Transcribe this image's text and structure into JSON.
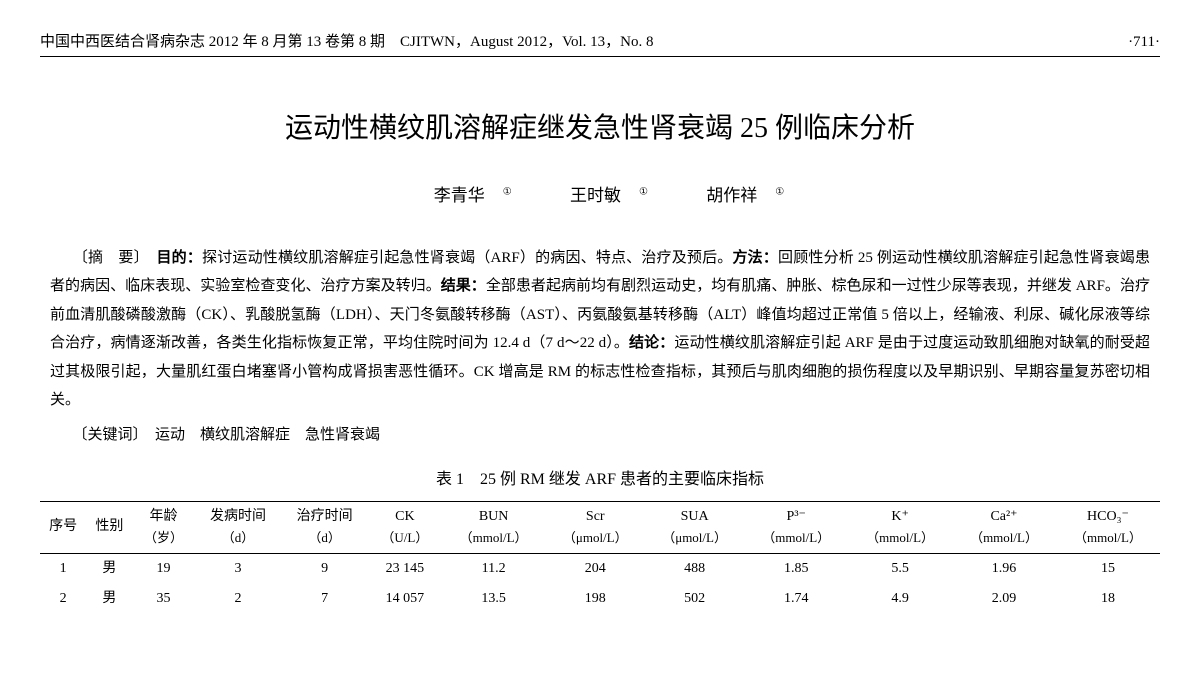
{
  "header": {
    "left": "中国中西医结合肾病杂志 2012 年 8 月第 13 卷第 8 期　CJITWN，August 2012，Vol. 13，No. 8",
    "right": "·711·"
  },
  "title": "运动性横纹肌溶解症继发急性肾衰竭 25 例临床分析",
  "authors": [
    "李青华",
    "王时敏",
    "胡作祥"
  ],
  "author_mark": "①",
  "abstract_label": "〔摘　要〕",
  "abstract": {
    "objective_label": "目的：",
    "objective": "探讨运动性横纹肌溶解症引起急性肾衰竭（ARF）的病因、特点、治疗及预后。",
    "methods_label": "方法：",
    "methods": "回顾性分析 25 例运动性横纹肌溶解症引起急性肾衰竭患者的病因、临床表现、实验室检查变化、治疗方案及转归。",
    "results_label": "结果：",
    "results": "全部患者起病前均有剧烈运动史，均有肌痛、肿胀、棕色尿和一过性少尿等表现，并继发 ARF。治疗前血清肌酸磷酸激酶（CK）、乳酸脱氢酶（LDH）、天门冬氨酸转移酶（AST）、丙氨酸氨基转移酶（ALT）峰值均超过正常值 5 倍以上，经输液、利尿、碱化尿液等综合治疗，病情逐渐改善，各类生化指标恢复正常，平均住院时间为 12.4 d（7 d～22 d）。",
    "conclusion_label": "结论：",
    "conclusion": "运动性横纹肌溶解症引起 ARF 是由于过度运动致肌细胞对缺氧的耐受超过其极限引起，大量肌红蛋白堵塞肾小管构成肾损害恶性循环。CK 增高是 RM 的标志性检查指标，其预后与肌肉细胞的损伤程度以及早期识别、早期容量复苏密切相关。"
  },
  "keywords_label": "〔关键词〕",
  "keywords": "运动　横纹肌溶解症　急性肾衰竭",
  "table": {
    "caption": "表 1　25 例 RM 继发 ARF 患者的主要临床指标",
    "columns": [
      {
        "h": "序号",
        "u": ""
      },
      {
        "h": "性别",
        "u": ""
      },
      {
        "h": "年龄",
        "u": "（岁）"
      },
      {
        "h": "发病时间",
        "u": "（d）"
      },
      {
        "h": "治疗时间",
        "u": "（d）"
      },
      {
        "h": "CK",
        "u": "（U/L）"
      },
      {
        "h": "BUN",
        "u": "（mmol/L）"
      },
      {
        "h": "Scr",
        "u": "（μmol/L）"
      },
      {
        "h": "SUA",
        "u": "（μmol/L）"
      },
      {
        "h": "P³⁻",
        "u": "（mmol/L）"
      },
      {
        "h": "K⁺",
        "u": "（mmol/L）"
      },
      {
        "h": "Ca²⁺",
        "u": "（mmol/L）"
      },
      {
        "h": "HCO₃⁻",
        "u": "（mmol/L）"
      }
    ],
    "rows": [
      [
        "1",
        "男",
        "19",
        "3",
        "9",
        "23 145",
        "11.2",
        "204",
        "488",
        "1.85",
        "5.5",
        "1.96",
        "15"
      ],
      [
        "2",
        "男",
        "35",
        "2",
        "7",
        "14 057",
        "13.5",
        "198",
        "502",
        "1.74",
        "4.9",
        "2.09",
        "18"
      ]
    ]
  }
}
